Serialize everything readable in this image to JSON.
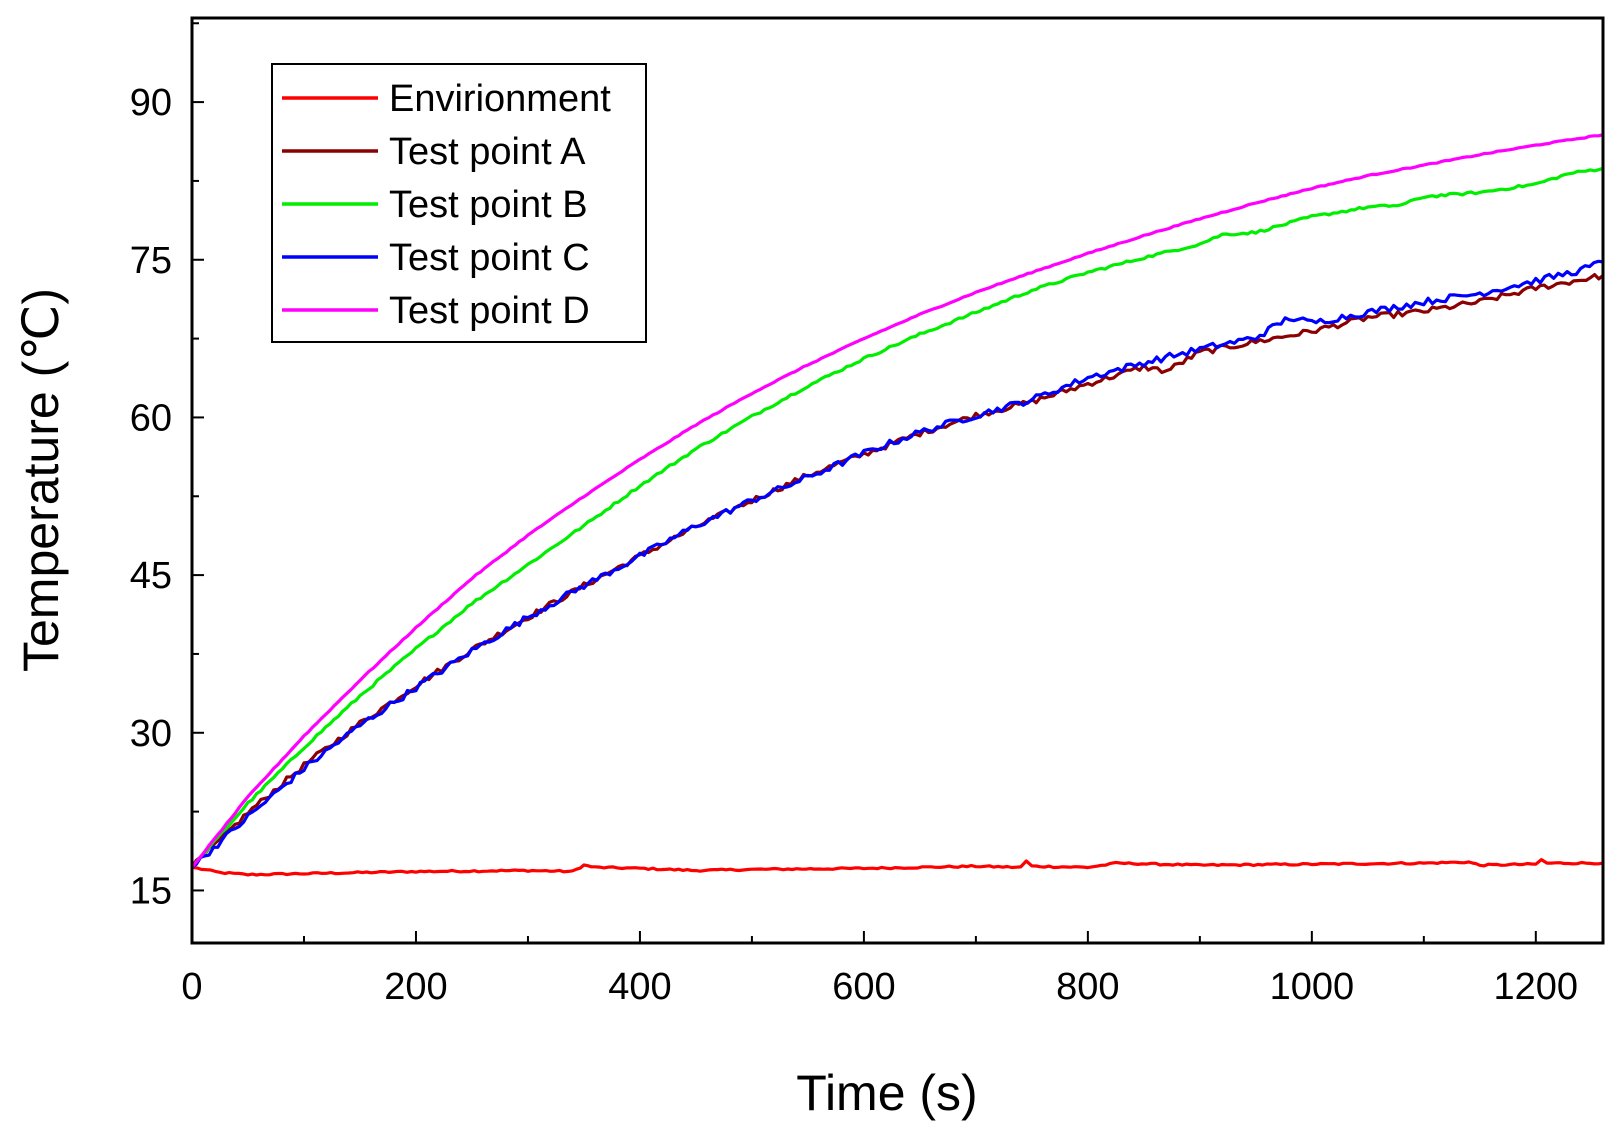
{
  "chart_data": {
    "type": "line",
    "title": "",
    "xlabel": "Time (s)",
    "ylabel": "Temperature (℃)",
    "xlim": [
      0,
      1260
    ],
    "ylim": [
      10,
      98
    ],
    "xticks": [
      0,
      200,
      400,
      600,
      800,
      1000,
      1200
    ],
    "yticks": [
      15,
      30,
      45,
      60,
      75,
      90
    ],
    "xtick_labels": [
      "0",
      "200",
      "400",
      "600",
      "800",
      "1000",
      "1200"
    ],
    "ytick_labels": [
      "15",
      "30",
      "45",
      "60",
      "75",
      "90"
    ],
    "legend_position": "top-left",
    "grid": false,
    "series": [
      {
        "name": "Envirionment",
        "color": "#ff0000",
        "x": [
          0,
          25,
          50,
          100,
          200,
          300,
          340,
          350,
          360,
          400,
          450,
          500,
          600,
          700,
          740,
          745,
          750,
          800,
          820,
          825,
          900,
          1000,
          1100,
          1140,
          1150,
          1200,
          1205,
          1210,
          1260
        ],
        "y": [
          17.2,
          16.7,
          16.5,
          16.6,
          16.8,
          16.9,
          16.8,
          17.4,
          17.2,
          17.1,
          16.9,
          17.0,
          17.1,
          17.3,
          17.2,
          17.8,
          17.3,
          17.2,
          17.5,
          17.6,
          17.4,
          17.5,
          17.6,
          17.7,
          17.4,
          17.5,
          17.9,
          17.6,
          17.6
        ]
      },
      {
        "name": "Test point A",
        "color": "#8b0000",
        "x": [
          0,
          50,
          100,
          150,
          200,
          250,
          300,
          350,
          400,
          450,
          500,
          550,
          600,
          650,
          700,
          750,
          800,
          850,
          870,
          900,
          950,
          1000,
          1050,
          1100,
          1150,
          1200,
          1230,
          1260
        ],
        "y": [
          17.2,
          22.4,
          26.9,
          30.9,
          34.5,
          37.9,
          41.0,
          44.0,
          46.8,
          49.6,
          52.1,
          54.5,
          56.5,
          58.5,
          60.2,
          61.5,
          63.2,
          64.8,
          64.4,
          66.2,
          67.2,
          68.2,
          69.5,
          70.1,
          71.0,
          72.3,
          72.9,
          73.5
        ]
      },
      {
        "name": "Test point B",
        "color": "#00ee00",
        "x": [
          0,
          50,
          100,
          150,
          200,
          250,
          300,
          350,
          400,
          450,
          500,
          550,
          600,
          650,
          700,
          750,
          800,
          850,
          900,
          920,
          950,
          1000,
          1050,
          1080,
          1100,
          1150,
          1200,
          1230,
          1260
        ],
        "y": [
          17.2,
          23.3,
          28.6,
          33.5,
          38.0,
          42.3,
          46.0,
          49.7,
          53.5,
          57.0,
          60.1,
          63.0,
          65.6,
          67.9,
          70.0,
          72.1,
          73.8,
          75.2,
          76.5,
          77.4,
          77.6,
          79.1,
          80.0,
          80.2,
          81.0,
          81.4,
          82.2,
          83.2,
          83.7
        ]
      },
      {
        "name": "Test point C",
        "color": "#0000ff",
        "x": [
          0,
          50,
          100,
          150,
          200,
          250,
          300,
          350,
          400,
          450,
          500,
          550,
          600,
          650,
          700,
          750,
          800,
          850,
          900,
          950,
          980,
          1000,
          1050,
          1100,
          1150,
          1200,
          1240,
          1260
        ],
        "y": [
          17.2,
          22.0,
          26.6,
          30.7,
          34.3,
          37.8,
          41.0,
          44.0,
          46.8,
          49.7,
          52.1,
          54.3,
          56.6,
          58.6,
          60.2,
          61.7,
          63.8,
          65.2,
          66.5,
          67.6,
          69.5,
          69.0,
          70.0,
          71.0,
          71.8,
          73.0,
          74.0,
          74.8
        ]
      },
      {
        "name": "Test point D",
        "color": "#ff00ff",
        "x": [
          0,
          50,
          100,
          150,
          200,
          250,
          300,
          350,
          400,
          450,
          500,
          550,
          600,
          650,
          700,
          750,
          800,
          850,
          900,
          950,
          1000,
          1050,
          1100,
          1150,
          1200,
          1260
        ],
        "y": [
          17.2,
          23.9,
          29.7,
          35.0,
          40.0,
          44.7,
          48.8,
          52.5,
          56.0,
          59.3,
          62.3,
          65.0,
          67.5,
          69.8,
          71.9,
          73.8,
          75.6,
          77.3,
          78.9,
          80.4,
          81.8,
          83.0,
          84.0,
          85.0,
          85.9,
          86.9
        ]
      }
    ]
  }
}
